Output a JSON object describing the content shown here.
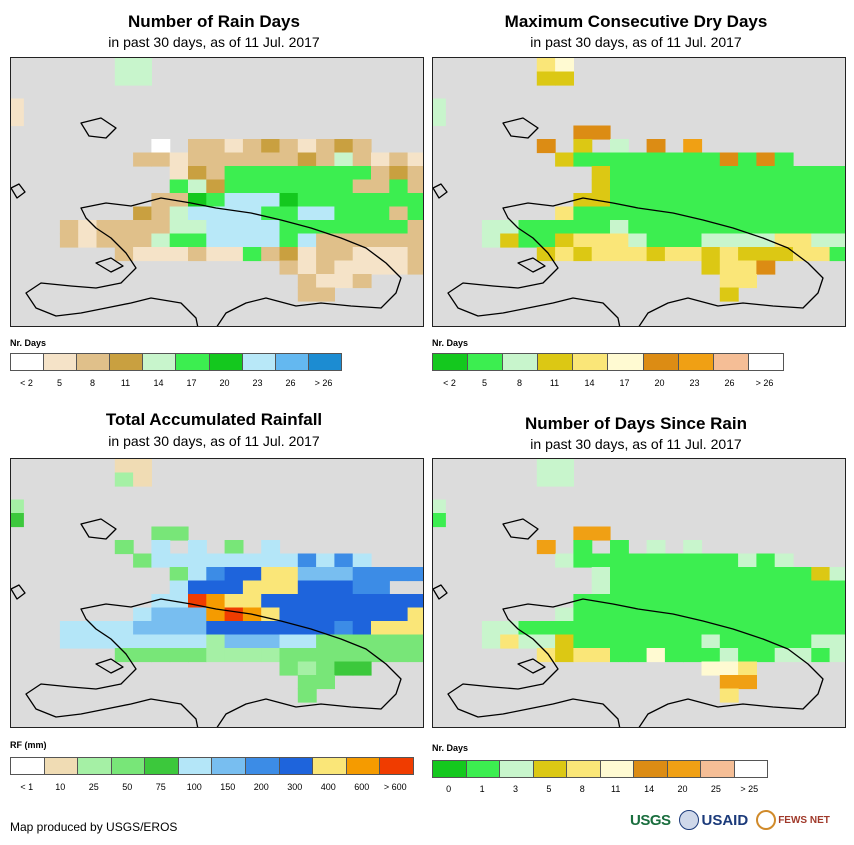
{
  "panels": [
    {
      "title": "Number of Rain Days",
      "subtitle": "in past 30 days, as of 11 Jul. 2017",
      "legend_label": "Nr. Days",
      "legend_colors": [
        "#ffffff",
        "#f5e3c8",
        "#e0c08a",
        "#c9a040",
        "#c8f5cc",
        "#3cee50",
        "#14c81e",
        "#b8e8f8",
        "#64b8f0",
        "#1c8cd2"
      ],
      "tick_labels": [
        "< 2",
        "5",
        "8",
        "11",
        "14",
        "17",
        "20",
        "23",
        "26",
        "> 26"
      ],
      "tick_mode": "bin",
      "cells": [
        "......44.....................................",
        "......44.....................................",
        "............................................",
        "1...........................................",
        "1...........................................",
        "............................................",
        "........0.2212321232........................",
        ".......2212222223242121......................",
        ".........132555555552322.....................",
        ".........5435555555225222....................",
        "........2265777655555552221..................",
        ".......32477775577555257122..................",
        "...2122224477775555555235121.................",
        "...212224557777572222225722..................",
        "......211121152312211121221..................",
        "...............21211112......................",
        "................2112.........................",
        "................22............................"
      ]
    },
    {
      "title": "Maximum Consecutive Dry Days",
      "subtitle": "in past 30 days, as of 11 Jul. 2017",
      "legend_label": "Nr. Days",
      "legend_colors": [
        "#14c81e",
        "#3cee50",
        "#c8f5cc",
        "#dcc814",
        "#fae678",
        "#fffad2",
        "#dc8c14",
        "#f0a014",
        "#f5be96",
        "#ffffff"
      ],
      "tick_labels": [
        "< 2",
        "5",
        "8",
        "11",
        "14",
        "17",
        "20",
        "23",
        "26",
        "> 26"
      ],
      "tick_mode": "bin",
      "cells": [
        "......45.....................................",
        "......33.....................................",
        "............................................",
        "2...........................................",
        "2...........................................",
        "........66..................................",
        "......6.3.2.6.7.............................",
        ".......3111111116161.........................",
        ".........311111111111111.....................",
        ".........311111111111111.....................",
        "........33111111111111111112.................",
        ".......4111111111111111111133.................",
        "...22111112111111111111111133................",
        "...23113444211122224422143...................",
        "......3434443443433344143....................",
        "...............3446..........................",
        "................44............................",
        "................3............................."
      ]
    },
    {
      "title": "Total Accumulated Rainfall",
      "subtitle": "in past 30 days, as of 11 Jul. 2017",
      "legend_label": "RF (mm)",
      "legend_colors": [
        "#ffffff",
        "#f0dcb4",
        "#a5f0a5",
        "#78e678",
        "#3cc83c",
        "#b4e6f8",
        "#78bef0",
        "#3c8ce6",
        "#1e64dc",
        "#fae678",
        "#f59b00",
        "#f03c00"
      ],
      "tick_labels": [
        "< 1",
        "10",
        "25",
        "50",
        "75",
        "100",
        "150",
        "200",
        "300",
        "400",
        "600",
        "> 600"
      ],
      "tick_mode": "edge",
      "cells": [
        "......11.....................................",
        "......21.....................................",
        "............................................",
        "2...........................................",
        "4...........................................",
        "........33..................................",
        "......3.5.5.3.5.............................",
        ".......3555555557575.........................",
        ".........35788996667777......................",
        ".........588899988877...5....................",
        "........55BA99888888888888...................",
        ".......5666ABA988888889AA66..................",
        "...5555666688888887899966673.................",
        "...55555555266655333333555...................",
        "......3333322223333333333....................",
        "...............32344.........................",
        "................33............................",
        "................3............................."
      ]
    },
    {
      "title": "Number of Days Since Rain",
      "subtitle": "in past 30 days, as of 11 Jul. 2017",
      "legend_label": "Nr. Days",
      "legend_colors": [
        "#14c81e",
        "#3cee50",
        "#c8f5cc",
        "#dcc814",
        "#fae678",
        "#fffad2",
        "#dc8c14",
        "#f0a014",
        "#f5be96",
        "#ffffff"
      ],
      "tick_labels": [
        "0",
        "1",
        "3",
        "5",
        "8",
        "11",
        "14",
        "20",
        "25",
        "> 25"
      ],
      "tick_mode": "bin",
      "cells": [
        "......22.....................................",
        "......22.....................................",
        "............................................",
        "2...........................................",
        "1...........................................",
        "........77..................................",
        "......7.1.1.2.2.............................",
        ".......2111111111212.........................",
        ".........2111111111113222....................",
        ".........211111111111111.....................",
        "........11111111111111111112.................",
        ".......21111111111111111112322................",
        "...22111111111111111111111232................",
        "...24223111111121111122132...................",
        "......434411511121122123.....................",
        "...............554...........................",
        "................77............................",
        "................4............................."
      ]
    }
  ],
  "footer": {
    "produced_by": "Map produced by USGS/EROS",
    "logos": [
      "USGS",
      "USAID",
      "FEWS NET"
    ]
  }
}
